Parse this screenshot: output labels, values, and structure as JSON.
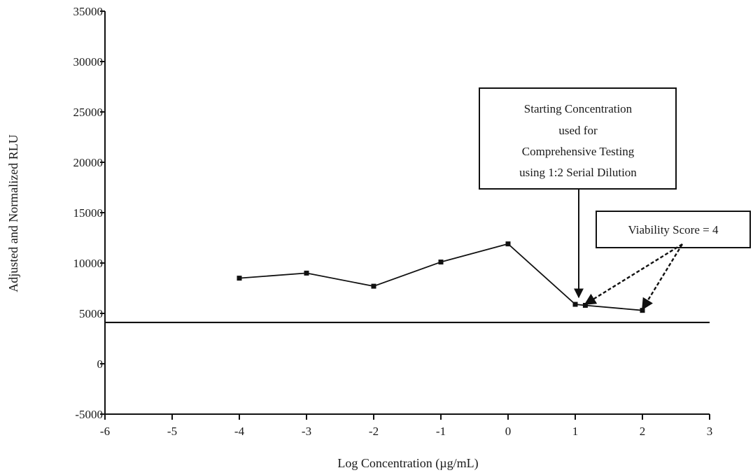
{
  "chart_data": {
    "type": "line",
    "title": "",
    "xlabel": "Log Concentration (µg/mL)",
    "ylabel": "Adjusted and Normalized RLU",
    "xlim": [
      -6,
      3
    ],
    "ylim": [
      -5000,
      35000
    ],
    "x_ticks": [
      -6,
      -5,
      -4,
      -3,
      -2,
      -1,
      0,
      1,
      2,
      3
    ],
    "y_ticks": [
      -5000,
      0,
      5000,
      10000,
      15000,
      20000,
      25000,
      30000,
      35000
    ],
    "x_tick_labels": [
      "-6",
      "-5",
      "-4",
      "-3",
      "-2",
      "-1",
      "0",
      "1",
      "2",
      "3"
    ],
    "y_tick_labels": [
      "-5000",
      "0",
      "5000",
      "10000",
      "15000",
      "20000",
      "25000",
      "30000",
      "35000"
    ],
    "grid": false,
    "series": [
      {
        "x": [
          -4,
          -3,
          -2,
          -1,
          0,
          1,
          1.15,
          2
        ],
        "y": [
          8500,
          9000,
          7700,
          10100,
          11900,
          5900,
          5800,
          5300
        ]
      }
    ],
    "threshold_line": {
      "y": 4100,
      "x_range": [
        -6,
        3
      ]
    },
    "annotations": [
      {
        "text_lines": [
          "Starting Concentration",
          "used for",
          "Comprehensive Testing",
          "using 1:2 Serial Dilution"
        ],
        "arrow_to": {
          "x": 1.05,
          "y": 6000
        }
      },
      {
        "text": "Viability Score = 4",
        "arrows_to": [
          {
            "x": 1.15,
            "y": 5800
          },
          {
            "x": 2,
            "y": 5300
          }
        ]
      }
    ]
  }
}
